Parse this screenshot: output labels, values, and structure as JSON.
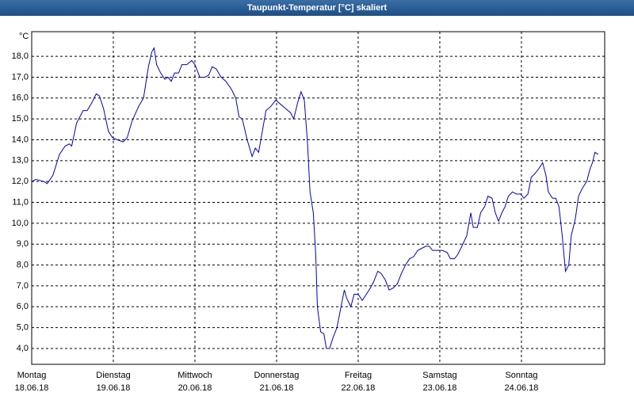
{
  "chart_data": {
    "type": "line",
    "title": "Taupunkt-Temperatur [°C] skaliert",
    "y_unit": "°C",
    "x": [
      0,
      0.05,
      0.15,
      0.19,
      0.26,
      0.34,
      0.41,
      0.46,
      0.49,
      0.55,
      0.63,
      0.68,
      0.74,
      0.79,
      0.83,
      0.88,
      0.94,
      0.99,
      1.05,
      1.12,
      1.17,
      1.23,
      1.31,
      1.37,
      1.43,
      1.47,
      1.5,
      1.53,
      1.58,
      1.63,
      1.67,
      1.71,
      1.75,
      1.8,
      1.84,
      1.9,
      1.96,
      2.0,
      2.06,
      2.12,
      2.17,
      2.21,
      2.26,
      2.32,
      2.38,
      2.45,
      2.5,
      2.54,
      2.58,
      2.64,
      2.7,
      2.74,
      2.78,
      2.83,
      2.87,
      2.93,
      2.99,
      3.05,
      3.11,
      3.17,
      3.21,
      3.26,
      3.3,
      3.34,
      3.38,
      3.41,
      3.45,
      3.48,
      3.5,
      3.54,
      3.58,
      3.61,
      3.65,
      3.69,
      3.74,
      3.79,
      3.83,
      3.86,
      3.91,
      3.95,
      4.0,
      4.05,
      4.1,
      4.15,
      4.19,
      4.24,
      4.28,
      4.33,
      4.38,
      4.43,
      4.48,
      4.53,
      4.58,
      4.63,
      4.68,
      4.73,
      4.78,
      4.83,
      4.87,
      4.91,
      4.97,
      5.03,
      5.09,
      5.13,
      5.18,
      5.22,
      5.27,
      5.33,
      5.38,
      5.41,
      5.46,
      5.5,
      5.55,
      5.59,
      5.64,
      5.68,
      5.72,
      5.76,
      5.8,
      5.84,
      5.89,
      5.94,
      5.99,
      6.03,
      6.08,
      6.12,
      6.17,
      6.21,
      6.26,
      6.3,
      6.33,
      6.38,
      6.42,
      6.46,
      6.5,
      6.54,
      6.58,
      6.61,
      6.66,
      6.7,
      6.75,
      6.8,
      6.84,
      6.87,
      6.9,
      6.94
    ],
    "series": [
      {
        "name": "Taupunkt",
        "color": "#0000c0",
        "values": [
          12.0,
          12.1,
          12.0,
          11.9,
          12.3,
          13.3,
          13.7,
          13.8,
          13.7,
          14.8,
          15.4,
          15.4,
          15.8,
          16.2,
          16.1,
          15.5,
          14.4,
          14.1,
          14.0,
          13.9,
          14.1,
          14.9,
          15.6,
          16.0,
          17.5,
          18.2,
          18.4,
          17.6,
          17.2,
          16.9,
          17.0,
          16.8,
          17.2,
          17.2,
          17.6,
          17.6,
          17.8,
          17.6,
          17.0,
          17.0,
          17.1,
          17.5,
          17.4,
          17.0,
          16.8,
          16.4,
          16.0,
          15.1,
          15.0,
          14.0,
          13.2,
          13.6,
          13.4,
          14.5,
          15.4,
          15.6,
          15.9,
          15.7,
          15.5,
          15.3,
          15.0,
          15.8,
          16.3,
          15.9,
          13.8,
          11.5,
          10.5,
          8.5,
          6.0,
          4.8,
          4.7,
          4.0,
          4.0,
          4.5,
          5.0,
          6.0,
          6.8,
          6.4,
          6.0,
          6.6,
          6.6,
          6.3,
          6.6,
          6.9,
          7.2,
          7.7,
          7.6,
          7.3,
          6.8,
          6.9,
          7.1,
          7.6,
          8.0,
          8.3,
          8.4,
          8.7,
          8.8,
          8.9,
          8.9,
          8.7,
          8.7,
          8.7,
          8.6,
          8.3,
          8.3,
          8.5,
          8.9,
          9.4,
          10.5,
          9.8,
          9.8,
          10.5,
          10.8,
          11.3,
          11.2,
          10.5,
          10.1,
          10.5,
          10.8,
          11.3,
          11.5,
          11.4,
          11.4,
          11.2,
          11.4,
          12.2,
          12.4,
          12.6,
          12.9,
          12.3,
          11.5,
          11.2,
          11.2,
          10.8,
          9.4,
          7.7,
          8.0,
          9.4,
          10.2,
          11.3,
          11.7,
          12.0,
          12.6,
          12.9,
          13.4,
          13.3
        ]
      }
    ],
    "xlim": [
      0,
      7.02
    ],
    "xticks": [
      {
        "value": 0,
        "label": "Montag",
        "date": "18.06.18"
      },
      {
        "value": 1,
        "label": "Dienstag",
        "date": "19.06.18"
      },
      {
        "value": 2,
        "label": "Mittwoch",
        "date": "20.06.18"
      },
      {
        "value": 3,
        "label": "Donnerstag",
        "date": "21.06.18"
      },
      {
        "value": 4,
        "label": "Freitag",
        "date": "22.06.18"
      },
      {
        "value": 5,
        "label": "Samstag",
        "date": "23.06.18"
      },
      {
        "value": 6,
        "label": "Sonntag",
        "date": "24.06.18"
      }
    ],
    "ylim": [
      3.24,
      19.18
    ],
    "yticks": [
      {
        "value": 4,
        "label": "4,0"
      },
      {
        "value": 5,
        "label": "5,0"
      },
      {
        "value": 6,
        "label": "6,0"
      },
      {
        "value": 7,
        "label": "7,0"
      },
      {
        "value": 8,
        "label": "8,0"
      },
      {
        "value": 9,
        "label": "9,0"
      },
      {
        "value": 10,
        "label": "10,0"
      },
      {
        "value": 11,
        "label": "11,0"
      },
      {
        "value": 12,
        "label": "12,0"
      },
      {
        "value": 13,
        "label": "13,0"
      },
      {
        "value": 14,
        "label": "14,0"
      },
      {
        "value": 15,
        "label": "15,0"
      },
      {
        "value": 16,
        "label": "16,0"
      },
      {
        "value": 17,
        "label": "17,0"
      },
      {
        "value": 18,
        "label": "18,0"
      }
    ],
    "grid": true
  }
}
